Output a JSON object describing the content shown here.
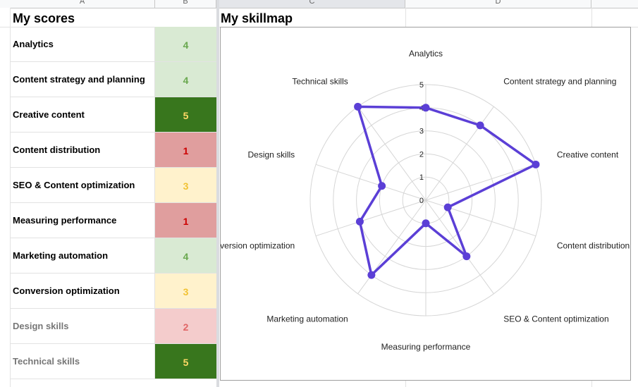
{
  "sheet": {
    "column_headers": [
      "A",
      "B",
      "C",
      "D"
    ]
  },
  "scores": {
    "title": "My scores",
    "rows": [
      {
        "skill": "Analytics",
        "score": "4",
        "bg": "#d9ead3",
        "fg": "#6aa84f",
        "muted": false
      },
      {
        "skill": "Content strategy and planning",
        "score": "4",
        "bg": "#d9ead3",
        "fg": "#6aa84f",
        "muted": false
      },
      {
        "skill": "Creative content",
        "score": "5",
        "bg": "#38761d",
        "fg": "#ffd966",
        "muted": false
      },
      {
        "skill": "Content distribution",
        "score": "1",
        "bg": "#e09e9e",
        "fg": "#cc0000",
        "muted": false
      },
      {
        "skill": "SEO & Content optimization",
        "score": "3",
        "bg": "#fff2cc",
        "fg": "#f1c232",
        "muted": false
      },
      {
        "skill": "Measuring performance",
        "score": "1",
        "bg": "#e09e9e",
        "fg": "#cc0000",
        "muted": false
      },
      {
        "skill": "Marketing automation",
        "score": "4",
        "bg": "#d9ead3",
        "fg": "#6aa84f",
        "muted": false
      },
      {
        "skill": "Conversion optimization",
        "score": "3",
        "bg": "#fff2cc",
        "fg": "#f1c232",
        "muted": false
      },
      {
        "skill": "Design skills",
        "score": "2",
        "bg": "#f4cccc",
        "fg": "#e06666",
        "muted": true
      },
      {
        "skill": "Technical skills",
        "score": "5",
        "bg": "#38761d",
        "fg": "#ffd966",
        "muted": true
      }
    ]
  },
  "chart": {
    "title": "My skillmap"
  },
  "chart_data": {
    "type": "radar",
    "categories": [
      "Analytics",
      "Content strategy and planning",
      "Creative content",
      "Content distribution",
      "SEO & Content optimization",
      "Measuring performance",
      "Marketing automation",
      "Conversion optimization",
      "Design skills",
      "Technical skills"
    ],
    "values": [
      4,
      4,
      5,
      1,
      3,
      1,
      4,
      3,
      2,
      5
    ],
    "rlim": [
      0,
      5
    ],
    "ticks": [
      "0",
      "1",
      "2",
      "3",
      "4",
      "5"
    ],
    "line_color": "#5b3fd6",
    "grid_color": "#d6d6d6"
  }
}
